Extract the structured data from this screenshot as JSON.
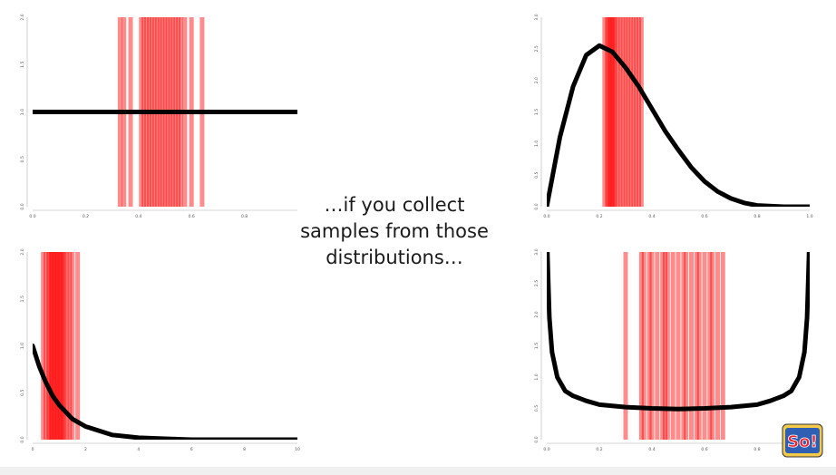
{
  "caption": {
    "lines": [
      "…if you collect",
      "samples from those",
      "distributions…"
    ]
  },
  "colors": {
    "curve": "#000000",
    "sample": "#ff0000",
    "axis": "#b0b0b0",
    "tick_label": "#555555"
  },
  "logo": {
    "text": "So!"
  },
  "chart_data": [
    {
      "panel": "top-left",
      "type": "line",
      "distribution_shape": "uniform",
      "x": [
        0.0,
        0.2,
        0.4,
        0.6,
        0.8,
        1.0
      ],
      "y": [
        1.0,
        1.0,
        1.0,
        1.0,
        1.0,
        1.0
      ],
      "xlim": [
        0.0,
        1.0
      ],
      "ylim": [
        0.0,
        2.0
      ],
      "x_ticks": [
        "0.0",
        "0.2",
        "0.4",
        "0.6",
        "0.8"
      ],
      "y_ticks": [
        "0.0",
        "0.5",
        "1.0",
        "1.5",
        "2.0"
      ],
      "samples": [
        0.33,
        0.345,
        0.37,
        0.41,
        0.42,
        0.43,
        0.44,
        0.45,
        0.46,
        0.47,
        0.48,
        0.49,
        0.5,
        0.51,
        0.52,
        0.53,
        0.54,
        0.55,
        0.56,
        0.575,
        0.6,
        0.64
      ]
    },
    {
      "panel": "top-right",
      "type": "line",
      "distribution_shape": "right-skewed",
      "x": [
        0.0,
        0.05,
        0.1,
        0.15,
        0.2,
        0.25,
        0.3,
        0.35,
        0.4,
        0.45,
        0.5,
        0.55,
        0.6,
        0.65,
        0.7,
        0.75,
        0.8,
        0.9,
        1.0
      ],
      "y": [
        0.0,
        1.1,
        1.9,
        2.4,
        2.55,
        2.45,
        2.2,
        1.9,
        1.55,
        1.2,
        0.9,
        0.62,
        0.4,
        0.24,
        0.13,
        0.06,
        0.02,
        0.0,
        0.0
      ],
      "xlim": [
        0.0,
        1.0
      ],
      "ylim": [
        0.0,
        3.0
      ],
      "x_ticks": [
        "0.0",
        "0.2",
        "0.4",
        "0.6",
        "0.8",
        "1.0"
      ],
      "y_ticks": [
        "0.0",
        "0.5",
        "1.0",
        "1.5",
        "2.0",
        "2.5",
        "3.0"
      ],
      "samples": [
        0.22,
        0.23,
        0.235,
        0.24,
        0.245,
        0.25,
        0.255,
        0.26,
        0.27,
        0.28,
        0.29,
        0.3,
        0.31,
        0.32,
        0.33,
        0.34,
        0.35,
        0.36
      ]
    },
    {
      "panel": "bottom-left",
      "type": "line",
      "distribution_shape": "exponential",
      "x": [
        0.0,
        0.25,
        0.5,
        0.75,
        1.0,
        1.5,
        2.0,
        3.0,
        4.0,
        5.0,
        6.0,
        7.0,
        8.0,
        9.0,
        10.0
      ],
      "y": [
        1.0,
        0.78,
        0.61,
        0.47,
        0.37,
        0.22,
        0.14,
        0.05,
        0.02,
        0.01,
        0.0,
        0.0,
        0.0,
        0.0,
        0.0
      ],
      "xlim": [
        0.0,
        10.0
      ],
      "ylim": [
        0.0,
        2.0
      ],
      "x_ticks": [
        "0",
        "2",
        "4",
        "6",
        "8",
        "10"
      ],
      "y_ticks": [
        "0.0",
        "0.5",
        "1.0",
        "1.5",
        "2.0"
      ],
      "samples": [
        0.4,
        0.5,
        0.6,
        0.65,
        0.7,
        0.75,
        0.8,
        0.85,
        0.9,
        0.95,
        1.0,
        1.05,
        1.1,
        1.15,
        1.2,
        1.3,
        1.4,
        1.5,
        1.7
      ]
    },
    {
      "panel": "bottom-right",
      "type": "line",
      "distribution_shape": "u-shaped",
      "x": [
        0.001,
        0.005,
        0.01,
        0.02,
        0.04,
        0.07,
        0.1,
        0.15,
        0.2,
        0.3,
        0.4,
        0.5,
        0.6,
        0.7,
        0.8,
        0.85,
        0.9,
        0.93,
        0.96,
        0.98,
        0.99,
        0.995,
        0.999
      ],
      "y": [
        3.2,
        2.6,
        1.95,
        1.4,
        1.0,
        0.78,
        0.7,
        0.62,
        0.56,
        0.52,
        0.5,
        0.49,
        0.5,
        0.52,
        0.56,
        0.62,
        0.7,
        0.78,
        1.0,
        1.4,
        1.95,
        2.6,
        3.2
      ],
      "xlim": [
        0.0,
        1.0
      ],
      "ylim": [
        0.0,
        3.0
      ],
      "x_ticks": [
        "0.0",
        "0.2",
        "0.4",
        "0.6",
        "0.8"
      ],
      "y_ticks": [
        "0.0",
        "0.5",
        "1.0",
        "1.5",
        "2.0",
        "2.5",
        "3.0"
      ],
      "samples": [
        0.3,
        0.36,
        0.37,
        0.39,
        0.4,
        0.42,
        0.44,
        0.45,
        0.46,
        0.48,
        0.5,
        0.52,
        0.53,
        0.55,
        0.57,
        0.58,
        0.6,
        0.62,
        0.63,
        0.65,
        0.67
      ]
    }
  ]
}
